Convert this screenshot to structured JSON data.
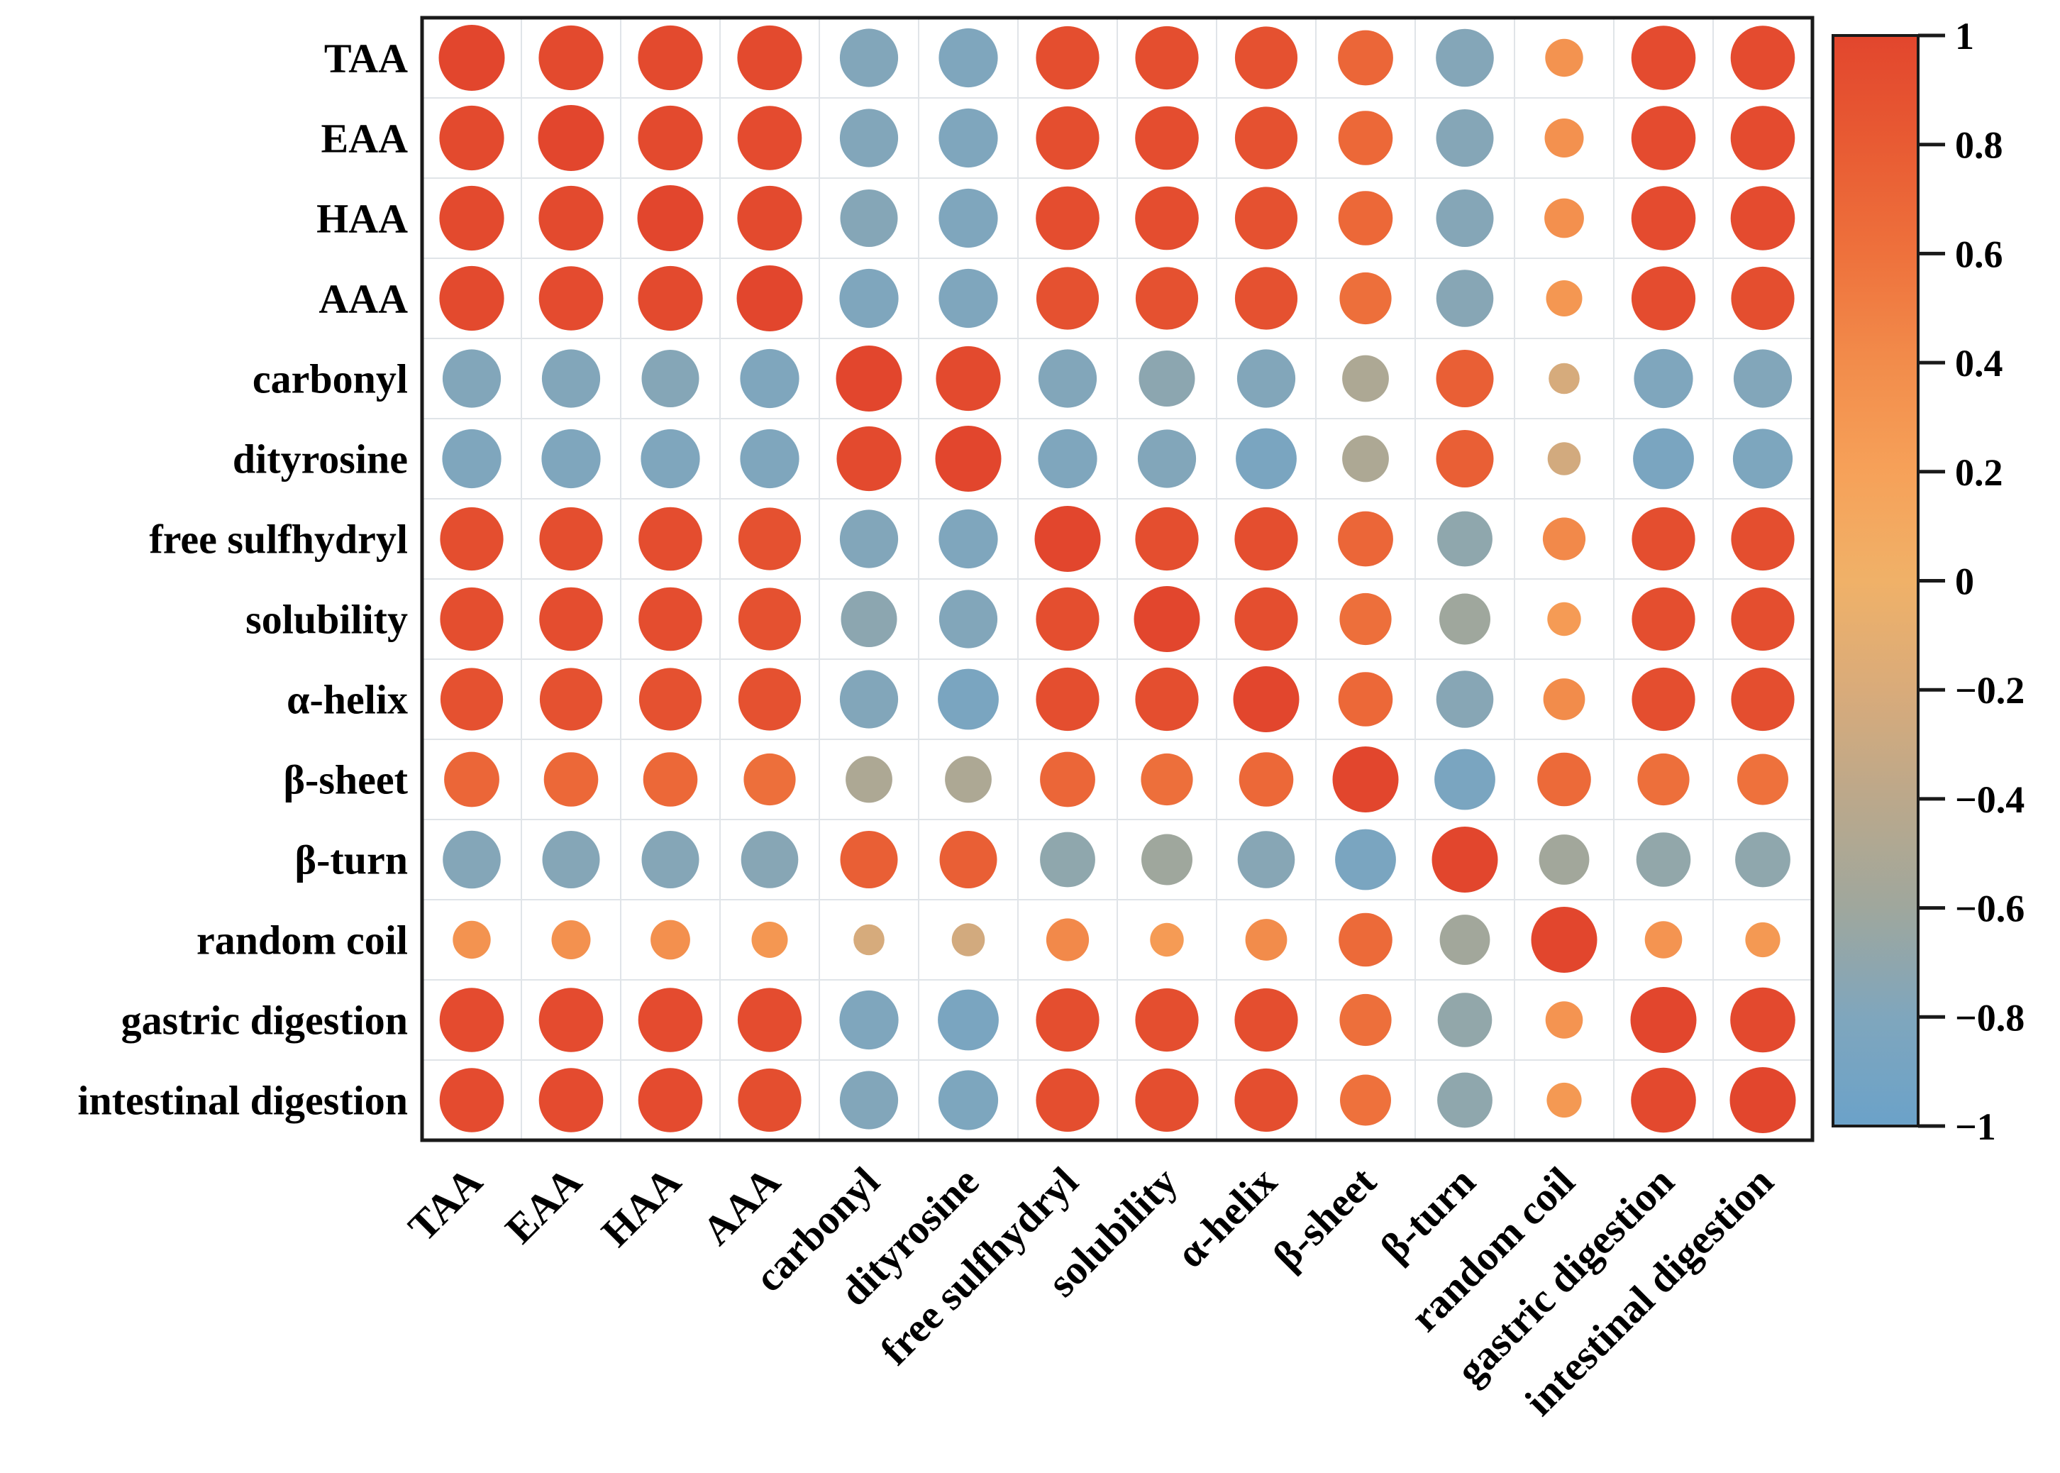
{
  "figure": {
    "background": "#ffffff",
    "border_color": "#1a1a1a",
    "gridline_color": "#e0e4e8"
  },
  "chart_data": {
    "type": "heatmap",
    "subtype": "correlation-bubble-matrix",
    "title": "",
    "xlabel": "",
    "ylabel": "",
    "grid": true,
    "legend_position": "right-colorbar",
    "encoding": {
      "circle_area": "abs(r)",
      "circle_color": "r"
    },
    "variables": [
      "TAA",
      "EAA",
      "HAA",
      "AAA",
      "carbonyl",
      "dityrosine",
      "free sulfhydryl",
      "solubility",
      "α-helix",
      "β-sheet",
      "β-turn",
      "random coil",
      "gastric digestion",
      "intestinal digestion"
    ],
    "matrix": [
      [
        1.0,
        0.96,
        0.96,
        0.96,
        -0.78,
        -0.8,
        0.92,
        0.92,
        0.9,
        0.7,
        -0.77,
        0.33,
        0.95,
        0.95
      ],
      [
        0.96,
        1.0,
        0.96,
        0.95,
        -0.78,
        -0.8,
        0.92,
        0.93,
        0.9,
        0.68,
        -0.76,
        0.35,
        0.95,
        0.95
      ],
      [
        0.96,
        0.96,
        1.0,
        0.96,
        -0.76,
        -0.8,
        0.93,
        0.93,
        0.9,
        0.68,
        -0.76,
        0.36,
        0.95,
        0.95
      ],
      [
        0.96,
        0.95,
        0.96,
        1.0,
        -0.8,
        -0.8,
        0.9,
        0.9,
        0.9,
        0.62,
        -0.75,
        0.3,
        0.94,
        0.92
      ],
      [
        -0.78,
        -0.78,
        -0.76,
        -0.8,
        1.0,
        0.96,
        -0.78,
        -0.72,
        -0.78,
        -0.5,
        0.76,
        -0.22,
        -0.8,
        -0.78
      ],
      [
        -0.8,
        -0.8,
        -0.8,
        -0.8,
        0.96,
        1.0,
        -0.8,
        -0.78,
        -0.85,
        -0.5,
        0.76,
        -0.25,
        -0.85,
        -0.82
      ],
      [
        0.92,
        0.92,
        0.93,
        0.9,
        -0.78,
        -0.8,
        1.0,
        0.92,
        0.92,
        0.7,
        -0.7,
        0.42,
        0.92,
        0.92
      ],
      [
        0.92,
        0.93,
        0.93,
        0.9,
        -0.72,
        -0.78,
        0.92,
        1.0,
        0.92,
        0.62,
        -0.6,
        0.26,
        0.92,
        0.92
      ],
      [
        0.9,
        0.9,
        0.9,
        0.9,
        -0.78,
        -0.85,
        0.92,
        0.92,
        1.0,
        0.68,
        -0.75,
        0.4,
        0.92,
        0.92
      ],
      [
        0.7,
        0.68,
        0.68,
        0.62,
        -0.5,
        -0.5,
        0.7,
        0.62,
        0.68,
        1.0,
        -0.85,
        0.66,
        0.62,
        0.6
      ],
      [
        -0.77,
        -0.76,
        -0.76,
        -0.75,
        0.76,
        0.76,
        -0.7,
        -0.6,
        -0.75,
        -0.85,
        1.0,
        -0.58,
        -0.68,
        -0.7
      ],
      [
        0.33,
        0.35,
        0.36,
        0.3,
        -0.22,
        -0.25,
        0.42,
        0.26,
        0.4,
        0.66,
        -0.58,
        1.0,
        0.32,
        0.28
      ],
      [
        0.95,
        0.95,
        0.95,
        0.94,
        -0.8,
        -0.85,
        0.92,
        0.92,
        0.92,
        0.62,
        -0.68,
        0.32,
        1.0,
        0.97
      ],
      [
        0.95,
        0.95,
        0.95,
        0.92,
        -0.78,
        -0.82,
        0.92,
        0.92,
        0.92,
        0.6,
        -0.7,
        0.28,
        0.97,
        1.0
      ]
    ],
    "colorbar": {
      "min": -1,
      "max": 1,
      "tick_values": [
        1,
        0.8,
        0.6,
        0.4,
        0.2,
        0,
        -0.2,
        -0.4,
        -0.6,
        -0.8,
        -1
      ],
      "tick_labels": [
        "1",
        "0.8",
        "0.6",
        "0.4",
        "0.2",
        "0",
        "−0.2",
        "−0.4",
        "−0.6",
        "−0.8",
        "−1"
      ]
    },
    "colormap_stops": [
      {
        "v": 1.0,
        "color": "#e2462d"
      },
      {
        "v": 0.8,
        "color": "#e85b33"
      },
      {
        "v": 0.6,
        "color": "#ee713c"
      },
      {
        "v": 0.4,
        "color": "#f28c4b"
      },
      {
        "v": 0.2,
        "color": "#f6a159"
      },
      {
        "v": 0.0,
        "color": "#f0b168"
      },
      {
        "v": -0.2,
        "color": "#d9ab7a"
      },
      {
        "v": -0.4,
        "color": "#bba88b"
      },
      {
        "v": -0.6,
        "color": "#9fa79d"
      },
      {
        "v": -0.8,
        "color": "#7fa6bd"
      },
      {
        "v": -1.0,
        "color": "#6ba2c9"
      }
    ]
  }
}
